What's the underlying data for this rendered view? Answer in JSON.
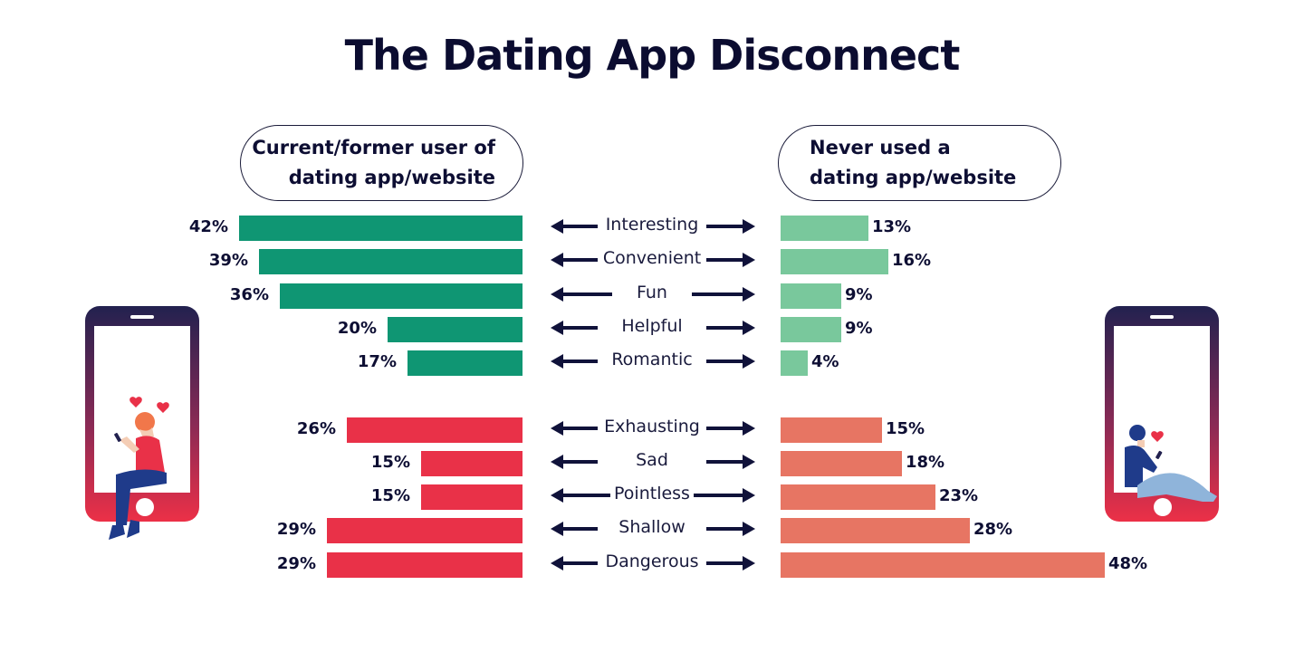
{
  "title": "The Dating App Disconnect",
  "groups": {
    "left": {
      "line1": "Current/former user of",
      "line2": "dating app/website"
    },
    "right": {
      "line1": "Never used a",
      "line2": "dating app/website"
    }
  },
  "colors": {
    "positive_left": "#0f9673",
    "positive_right": "#79c89c",
    "negative_left": "#e93148",
    "negative_right": "#e77563",
    "text": "#0d0e33",
    "arrow": "#10123a"
  },
  "chart_data": {
    "type": "bar",
    "orientation": "horizontal-diverging",
    "title": "The Dating App Disconnect",
    "categories": [
      "Interesting",
      "Convenient",
      "Fun",
      "Helpful",
      "Romantic",
      "Exhausting",
      "Sad",
      "Pointless",
      "Shallow",
      "Dangerous"
    ],
    "series": [
      {
        "name": "Current/former user of dating app/website",
        "values": [
          42,
          39,
          36,
          20,
          17,
          26,
          15,
          15,
          29,
          29
        ],
        "unit": "%"
      },
      {
        "name": "Never used a dating app/website",
        "values": [
          13,
          16,
          9,
          9,
          4,
          15,
          18,
          23,
          28,
          48
        ],
        "unit": "%"
      }
    ],
    "category_groups": [
      {
        "name": "positive",
        "categories": [
          "Interesting",
          "Convenient",
          "Fun",
          "Helpful",
          "Romantic"
        ]
      },
      {
        "name": "negative",
        "categories": [
          "Exhausting",
          "Sad",
          "Pointless",
          "Shallow",
          "Dangerous"
        ]
      }
    ],
    "xlabel": "",
    "ylabel": "",
    "grid": false,
    "legend": "pill labels above each side"
  },
  "rows": [
    {
      "label": "Interesting",
      "left": "42%",
      "right": "13%"
    },
    {
      "label": "Convenient",
      "left": "39%",
      "right": "16%"
    },
    {
      "label": "Fun",
      "left": "36%",
      "right": "9%"
    },
    {
      "label": "Helpful",
      "left": "20%",
      "right": "9%"
    },
    {
      "label": "Romantic",
      "left": "17%",
      "right": "4%"
    },
    {
      "label": "Exhausting",
      "left": "26%",
      "right": "15%"
    },
    {
      "label": "Sad",
      "left": "15%",
      "right": "18%"
    },
    {
      "label": "Pointless",
      "left": "15%",
      "right": "23%"
    },
    {
      "label": "Shallow",
      "left": "29%",
      "right": "28%"
    },
    {
      "label": "Dangerous",
      "left": "29%",
      "right": "48%"
    }
  ],
  "illustrations": {
    "left": "woman-on-phone-illustration",
    "right": "man-on-phone-illustration"
  }
}
